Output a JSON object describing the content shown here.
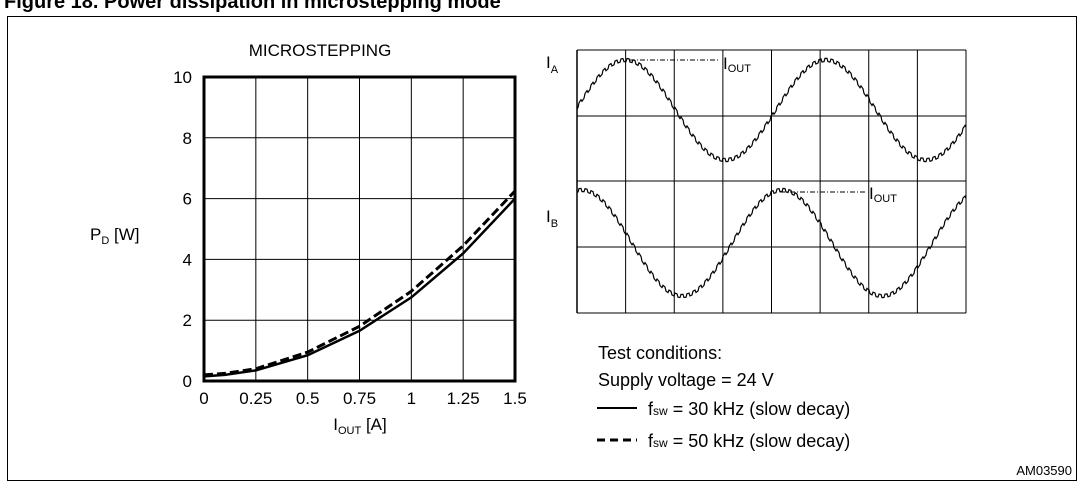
{
  "figure": {
    "title_fragment": "Figure 18. Power dissipation in microstepping mode",
    "id_code": "AM03590"
  },
  "chart_data": [
    {
      "type": "line",
      "title": "MICROSTEPPING",
      "xlabel": {
        "main": "I",
        "sub": "OUT",
        "unit": " [A]"
      },
      "ylabel": {
        "main": "P",
        "sub": "D",
        "unit": " [W]"
      },
      "xlim": [
        0,
        1.5
      ],
      "ylim": [
        0,
        10
      ],
      "x_ticks": [
        "0",
        "0.25",
        "0.5",
        "0.75",
        "1",
        "1.25",
        "1.5"
      ],
      "y_ticks": [
        "0",
        "2",
        "4",
        "6",
        "8",
        "10"
      ],
      "grid": true,
      "series": [
        {
          "name": "fsw = 30 kHz (slow decay)",
          "style": "solid",
          "x": [
            0,
            0.1,
            0.25,
            0.5,
            0.75,
            1.0,
            1.25,
            1.5
          ],
          "y": [
            0.15,
            0.2,
            0.35,
            0.85,
            1.65,
            2.75,
            4.2,
            6.0
          ]
        },
        {
          "name": "fsw = 50 kHz (slow decay)",
          "style": "dashed",
          "x": [
            0,
            0.1,
            0.25,
            0.5,
            0.75,
            1.0,
            1.25,
            1.5
          ],
          "y": [
            0.2,
            0.25,
            0.4,
            0.95,
            1.8,
            2.95,
            4.45,
            6.25
          ]
        }
      ]
    },
    {
      "type": "line",
      "title": "",
      "panels": [
        {
          "label": {
            "main": "I",
            "sub": "A"
          },
          "annotation": {
            "main": "I",
            "sub": "OUT"
          },
          "phase": "sin"
        },
        {
          "label": {
            "main": "I",
            "sub": "B"
          },
          "annotation": {
            "main": "I",
            "sub": "OUT"
          },
          "phase": "cos"
        }
      ],
      "grid": true
    }
  ],
  "test_conditions": {
    "heading": "Test conditions:",
    "supply": "Supply voltage = 24 V",
    "legend": [
      {
        "prefix": "f",
        "sub": "sw",
        "text": " = 30 kHz (slow decay)",
        "style": "solid"
      },
      {
        "prefix": "f",
        "sub": "sw",
        "text": " = 50 kHz (slow decay)",
        "style": "dashed"
      }
    ]
  }
}
